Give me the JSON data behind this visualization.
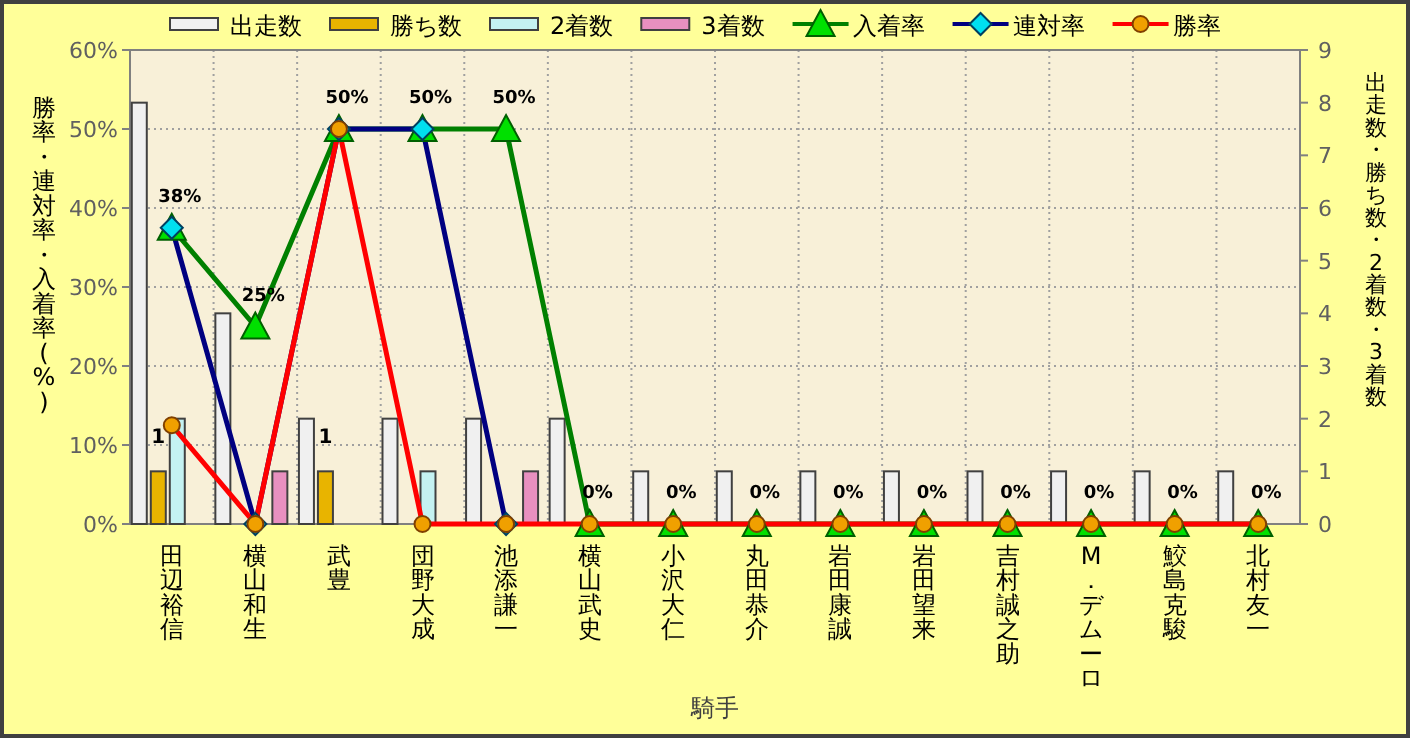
{
  "chart_data": {
    "type": "bar",
    "xlabel": "騎手",
    "ylabel": "勝率・連対率・入着率(%)",
    "y2label": "出走数・勝ち数・2着数・3着数",
    "categories": [
      "田辺裕信",
      "横山和生",
      "武豊",
      "団野大成",
      "池添謙一",
      "横山武史",
      "小沢大仁",
      "丸田恭介",
      "岩田康誠",
      "岩田望来",
      "吉村誠之助",
      "M．デムーロ",
      "鮫島克駿",
      "北村友一"
    ],
    "ylim": [
      0,
      60
    ],
    "yticks": [
      {
        "value": 0,
        "label": "0%"
      },
      {
        "value": 10,
        "label": "10%"
      },
      {
        "value": 20,
        "label": "20%"
      },
      {
        "value": 30,
        "label": "30%"
      },
      {
        "value": 40,
        "label": "40%"
      },
      {
        "value": 50,
        "label": "50%"
      },
      {
        "value": 60,
        "label": "60%"
      }
    ],
    "y2lim": [
      0,
      9
    ],
    "y2ticks": [
      0,
      1,
      2,
      3,
      4,
      5,
      6,
      7,
      8,
      9
    ],
    "grid": true,
    "legend": "top",
    "series": [
      {
        "name": "出走数",
        "axis": "y2",
        "color": "#f0f0f0",
        "values": [
          8,
          4,
          2,
          2,
          2,
          2,
          1,
          1,
          1,
          1,
          1,
          1,
          1,
          1
        ]
      },
      {
        "name": "勝ち数",
        "axis": "y2",
        "color": "#e8b400",
        "values": [
          1,
          0,
          1,
          0,
          0,
          0,
          0,
          0,
          0,
          0,
          0,
          0,
          0,
          0
        ],
        "value_labels": [
          "1",
          null,
          "1",
          null,
          null,
          null,
          null,
          null,
          null,
          null,
          null,
          null,
          null,
          null
        ]
      },
      {
        "name": "2着数",
        "axis": "y2",
        "color": "#c4f2f2",
        "values": [
          2,
          0,
          0,
          1,
          0,
          0,
          0,
          0,
          0,
          0,
          0,
          0,
          0,
          0
        ]
      },
      {
        "name": "3着数",
        "axis": "y2",
        "color": "#e890c0",
        "values": [
          0,
          1,
          0,
          0,
          1,
          0,
          0,
          0,
          0,
          0,
          0,
          0,
          0,
          0
        ]
      },
      {
        "name": "入着率",
        "type": "line",
        "color": "#008000",
        "marker": "triangle",
        "colors": [
          "#00e000",
          "#00e000",
          "#00e000",
          "#00e000",
          "#00e000",
          "#00e000",
          "#00e000",
          "#00e000",
          "#00e000",
          "#00e000",
          "#00e000",
          "#00e000",
          "#00e000",
          "#00e000"
        ],
        "values": [
          37.5,
          25,
          50,
          50,
          50,
          0,
          0,
          0,
          0,
          0,
          0,
          0,
          0,
          0
        ],
        "value_labels": [
          "38%",
          "25%",
          "50%",
          "50%",
          "50%",
          "0%",
          "0%",
          "0%",
          "0%",
          "0%",
          "0%",
          "0%",
          "0%",
          "0%"
        ]
      },
      {
        "name": "連対率",
        "type": "line",
        "color": "#000080",
        "marker": "diamond",
        "colors": [
          "#00e0f0",
          "#00e0f0",
          "#00e0f0",
          "#00e0f0",
          "#00e0f0",
          null,
          null,
          null,
          null,
          null,
          null,
          null,
          null,
          null
        ],
        "values": [
          37.5,
          0,
          50,
          50,
          0,
          null,
          null,
          null,
          null,
          null,
          null,
          null,
          null,
          null
        ]
      },
      {
        "name": "勝率",
        "type": "line",
        "color": "#ff0000",
        "marker": "circle",
        "colors": [
          "#f0a000",
          "#f0a000",
          "#f0a000",
          "#f0a000",
          "#f0a000",
          "#f0a000",
          "#f0a000",
          "#f0a000",
          "#f0a000",
          "#f0a000",
          "#f0a000",
          "#f0a000",
          "#f0a000",
          "#f0a000"
        ],
        "values": [
          12.5,
          0,
          50,
          0,
          0,
          0,
          0,
          0,
          0,
          0,
          0,
          0,
          0,
          0
        ]
      }
    ]
  }
}
